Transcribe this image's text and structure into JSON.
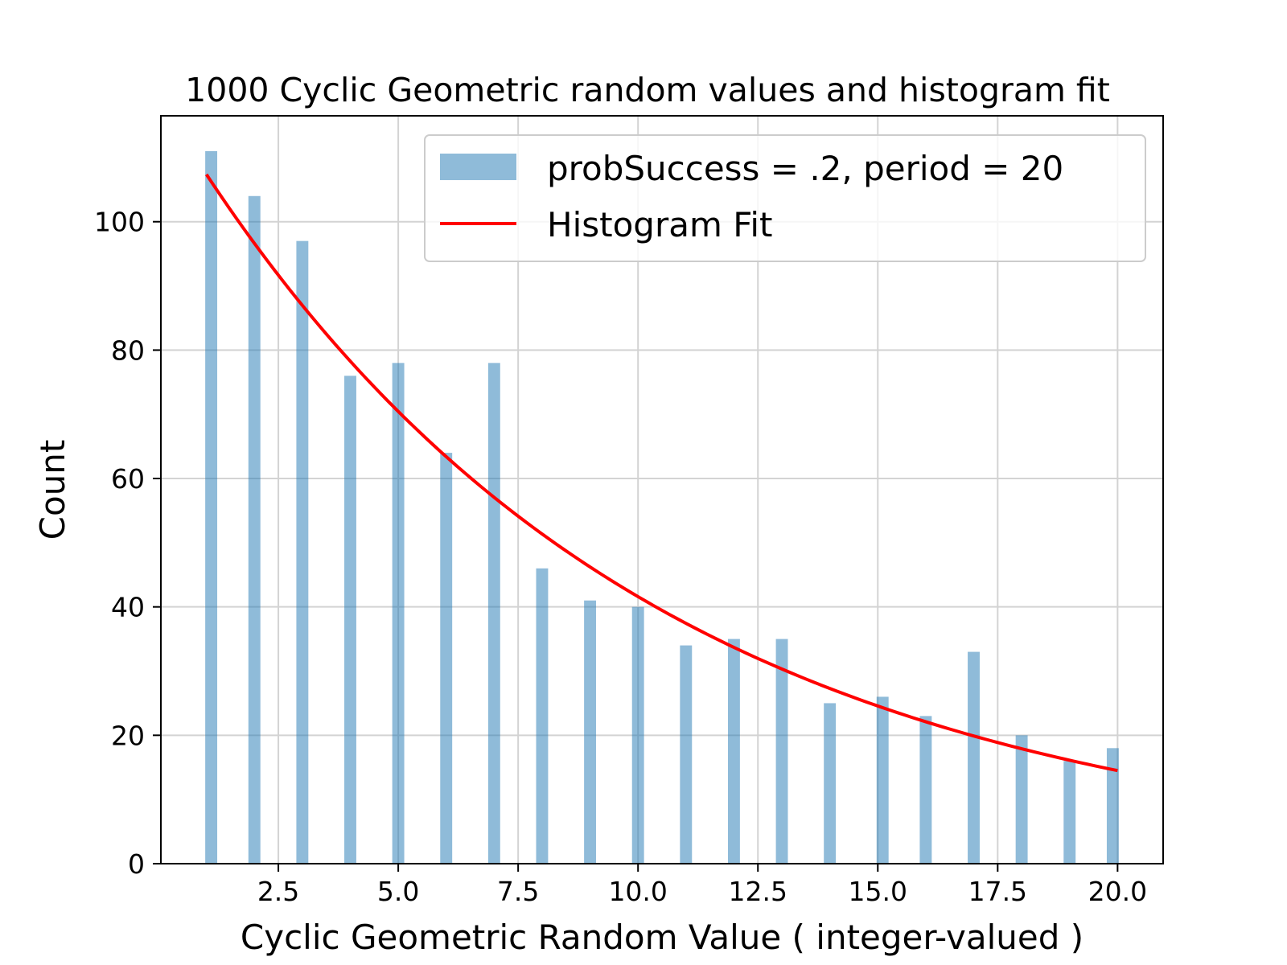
{
  "colors": {
    "bar": "#1f77b4",
    "fit": "#ff0000",
    "grid": "#d3d3d3"
  },
  "chart_data": {
    "type": "bar",
    "title": "1000 Cyclic Geometric random values and histogram fit",
    "xlabel": "Cyclic Geometric Random Value ( integer-valued )",
    "ylabel": "Count",
    "xlim": [
      0.05,
      20.95
    ],
    "ylim": [
      0,
      116.5
    ],
    "xticks": [
      2.5,
      5.0,
      7.5,
      10.0,
      12.5,
      15.0,
      17.5,
      20.0
    ],
    "xtick_labels": [
      "2.5",
      "5.0",
      "7.5",
      "10.0",
      "12.5",
      "15.0",
      "17.5",
      "20.0"
    ],
    "yticks": [
      0,
      20,
      40,
      60,
      80,
      100
    ],
    "ytick_labels": [
      "0",
      "20",
      "40",
      "60",
      "80",
      "100"
    ],
    "grid": true,
    "legend_position": "top-right",
    "series": [
      {
        "name": "probSuccess = .2, period = 20",
        "kind": "bar",
        "bars": [
          {
            "x": 1.1,
            "value": 111
          },
          {
            "x": 2.0,
            "value": 104
          },
          {
            "x": 3.0,
            "value": 97
          },
          {
            "x": 4.0,
            "value": 76
          },
          {
            "x": 5.0,
            "value": 78
          },
          {
            "x": 6.0,
            "value": 64
          },
          {
            "x": 7.0,
            "value": 78
          },
          {
            "x": 8.0,
            "value": 46
          },
          {
            "x": 9.0,
            "value": 41
          },
          {
            "x": 10.0,
            "value": 40
          },
          {
            "x": 11.0,
            "value": 34
          },
          {
            "x": 12.0,
            "value": 35
          },
          {
            "x": 13.0,
            "value": 35
          },
          {
            "x": 14.0,
            "value": 25
          },
          {
            "x": 15.1,
            "value": 26
          },
          {
            "x": 16.0,
            "value": 23
          },
          {
            "x": 17.0,
            "value": 33
          },
          {
            "x": 18.0,
            "value": 20
          },
          {
            "x": 19.0,
            "value": 16
          },
          {
            "x": 19.9,
            "value": 18
          }
        ],
        "bar_width": 0.25
      },
      {
        "name": "Histogram Fit",
        "kind": "line",
        "model": {
          "a": 119.3,
          "r": 0.9,
          "x_start": 1.0,
          "x_end": 20.0
        }
      }
    ]
  }
}
